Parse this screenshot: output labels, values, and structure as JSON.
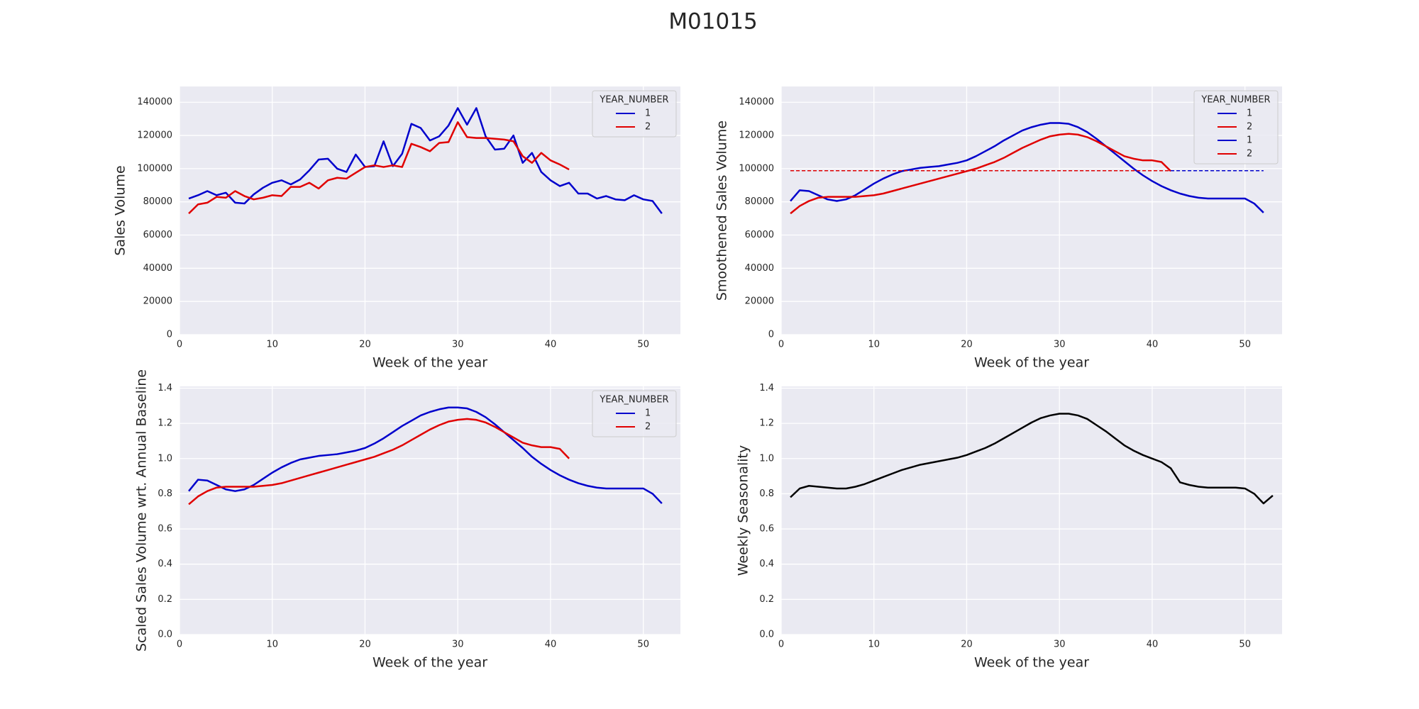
{
  "title": "M01015",
  "chart_data": [
    {
      "type": "line",
      "xlabel": "Week of the year",
      "ylabel": "Sales Volume",
      "xlim": [
        0,
        54
      ],
      "ylim": [
        0,
        149500
      ],
      "xticks": [
        0,
        10,
        20,
        30,
        40,
        50
      ],
      "yticks": [
        0,
        20000,
        40000,
        60000,
        80000,
        100000,
        120000,
        140000
      ],
      "grid": true,
      "legend": "upper right",
      "legend_title": "YEAR_NUMBER",
      "series": [
        {
          "name": "1",
          "color": "#0000cc",
          "linestyle": "solid",
          "x": [
            1,
            2,
            3,
            4,
            5,
            6,
            7,
            8,
            9,
            10,
            11,
            12,
            13,
            14,
            15,
            16,
            17,
            18,
            19,
            20,
            21,
            22,
            23,
            24,
            25,
            26,
            27,
            28,
            29,
            30,
            31,
            32,
            33,
            34,
            35,
            36,
            37,
            38,
            39,
            40,
            41,
            42,
            43,
            44,
            45,
            46,
            47,
            48,
            49,
            50,
            51,
            52
          ],
          "values": [
            82000,
            84000,
            86500,
            84000,
            85500,
            79500,
            79000,
            84500,
            88500,
            91500,
            93000,
            90500,
            93500,
            99000,
            105500,
            106000,
            100000,
            98000,
            108500,
            101000,
            101500,
            116500,
            101500,
            109000,
            127000,
            124500,
            117000,
            119500,
            126000,
            136500,
            126500,
            136500,
            119500,
            111500,
            112000,
            120000,
            103500,
            109500,
            98000,
            93000,
            89500,
            91500,
            85000,
            85000,
            82000,
            83500,
            81500,
            81000,
            84000,
            81500,
            80500,
            73000
          ]
        },
        {
          "name": "2",
          "color": "#e00000",
          "linestyle": "solid",
          "x": [
            1,
            2,
            3,
            4,
            5,
            6,
            7,
            8,
            9,
            10,
            11,
            12,
            13,
            14,
            15,
            16,
            17,
            18,
            19,
            20,
            21,
            22,
            23,
            24,
            25,
            26,
            27,
            28,
            29,
            30,
            31,
            32,
            33,
            34,
            35,
            36,
            37,
            38,
            39,
            40,
            41,
            42
          ],
          "values": [
            73000,
            78500,
            79500,
            83000,
            82500,
            86500,
            83500,
            81500,
            82500,
            84000,
            83500,
            89000,
            89000,
            91500,
            88000,
            93000,
            94500,
            94000,
            97500,
            101000,
            102000,
            101000,
            102000,
            101000,
            115000,
            113000,
            110500,
            115500,
            116000,
            128000,
            119000,
            118500,
            118500,
            118000,
            117500,
            116500,
            107500,
            103500,
            109500,
            105000,
            102500,
            99500
          ]
        }
      ]
    },
    {
      "type": "line",
      "xlabel": "Week of the year",
      "ylabel": "Smoothened Sales Volume",
      "xlim": [
        0,
        54
      ],
      "ylim": [
        0,
        149500
      ],
      "xticks": [
        0,
        10,
        20,
        30,
        40,
        50
      ],
      "yticks": [
        0,
        20000,
        40000,
        60000,
        80000,
        100000,
        120000,
        140000
      ],
      "grid": true,
      "legend": "upper right",
      "legend_title": "YEAR_NUMBER",
      "series": [
        {
          "name": "1",
          "color": "#0000cc",
          "linestyle": "solid",
          "x": [
            1,
            2,
            3,
            4,
            5,
            6,
            7,
            8,
            9,
            10,
            11,
            12,
            13,
            14,
            15,
            16,
            17,
            18,
            19,
            20,
            21,
            22,
            23,
            24,
            25,
            26,
            27,
            28,
            29,
            30,
            31,
            32,
            33,
            34,
            35,
            36,
            37,
            38,
            39,
            40,
            41,
            42,
            43,
            44,
            45,
            46,
            47,
            48,
            49,
            50,
            51,
            52
          ],
          "values": [
            80500,
            87000,
            86500,
            84000,
            81500,
            80500,
            81500,
            84000,
            87500,
            91000,
            94000,
            96500,
            98500,
            99500,
            100500,
            101000,
            101500,
            102500,
            103500,
            105000,
            107500,
            110500,
            113500,
            117000,
            120000,
            123000,
            125000,
            126500,
            127500,
            127500,
            127000,
            125000,
            122000,
            118000,
            113500,
            109000,
            104500,
            100000,
            96000,
            92500,
            89500,
            87000,
            85000,
            83500,
            82500,
            82000,
            82000,
            82000,
            82000,
            82000,
            79000,
            73500
          ]
        },
        {
          "name": "2",
          "color": "#e00000",
          "linestyle": "solid",
          "x": [
            1,
            2,
            3,
            4,
            5,
            6,
            7,
            8,
            9,
            10,
            11,
            12,
            13,
            14,
            15,
            16,
            17,
            18,
            19,
            20,
            21,
            22,
            23,
            24,
            25,
            26,
            27,
            28,
            29,
            30,
            31,
            32,
            33,
            34,
            35,
            36,
            37,
            38,
            39,
            40,
            41,
            42
          ],
          "values": [
            73000,
            77500,
            80500,
            82500,
            83000,
            83000,
            83000,
            83000,
            83500,
            84000,
            85000,
            86500,
            88000,
            89500,
            91000,
            92500,
            94000,
            95500,
            97000,
            98500,
            100000,
            102000,
            104000,
            106500,
            109500,
            112500,
            115000,
            117500,
            119500,
            120500,
            121000,
            120500,
            119000,
            116500,
            113500,
            110500,
            107500,
            106000,
            105000,
            105000,
            104000,
            98500
          ]
        },
        {
          "name": "1",
          "color": "#0000cc",
          "linestyle": "dashed",
          "x": [
            1,
            52
          ],
          "values": [
            98800,
            98800
          ]
        },
        {
          "name": "2",
          "color": "#e00000",
          "linestyle": "dashed",
          "x": [
            1,
            42
          ],
          "values": [
            98800,
            98800
          ]
        }
      ]
    },
    {
      "type": "line",
      "xlabel": "Week of the year",
      "ylabel": "Scaled Sales Volume wrt. Annual Baseline",
      "xlim": [
        0,
        54
      ],
      "ylim": [
        0,
        1.41
      ],
      "xticks": [
        0,
        10,
        20,
        30,
        40,
        50
      ],
      "yticks": [
        {
          "value": 0,
          "label": "0.0"
        },
        0.2,
        0.4,
        0.6,
        0.8,
        {
          "value": 1,
          "label": "1.0"
        },
        1.2,
        1.4
      ],
      "grid": true,
      "legend": "upper right",
      "legend_title": "YEAR_NUMBER",
      "series": [
        {
          "name": "1",
          "color": "#0000cc",
          "linestyle": "solid",
          "x": [
            1,
            2,
            3,
            4,
            5,
            6,
            7,
            8,
            9,
            10,
            11,
            12,
            13,
            14,
            15,
            16,
            17,
            18,
            19,
            20,
            21,
            22,
            23,
            24,
            25,
            26,
            27,
            28,
            29,
            30,
            31,
            32,
            33,
            34,
            35,
            36,
            37,
            38,
            39,
            40,
            41,
            42,
            43,
            44,
            45,
            46,
            47,
            48,
            49,
            50,
            51,
            52
          ],
          "values": [
            0.815,
            0.88,
            0.875,
            0.85,
            0.825,
            0.815,
            0.825,
            0.85,
            0.885,
            0.92,
            0.95,
            0.975,
            0.995,
            1.005,
            1.015,
            1.02,
            1.025,
            1.035,
            1.045,
            1.06,
            1.085,
            1.115,
            1.15,
            1.185,
            1.215,
            1.245,
            1.265,
            1.28,
            1.29,
            1.29,
            1.285,
            1.265,
            1.235,
            1.195,
            1.15,
            1.105,
            1.06,
            1.01,
            0.97,
            0.935,
            0.905,
            0.88,
            0.86,
            0.845,
            0.835,
            0.83,
            0.83,
            0.83,
            0.83,
            0.83,
            0.8,
            0.745
          ]
        },
        {
          "name": "2",
          "color": "#e00000",
          "linestyle": "solid",
          "x": [
            1,
            2,
            3,
            4,
            5,
            6,
            7,
            8,
            9,
            10,
            11,
            12,
            13,
            14,
            15,
            16,
            17,
            18,
            19,
            20,
            21,
            22,
            23,
            24,
            25,
            26,
            27,
            28,
            29,
            30,
            31,
            32,
            33,
            34,
            35,
            36,
            37,
            38,
            39,
            40,
            41,
            42
          ],
          "values": [
            0.74,
            0.785,
            0.815,
            0.835,
            0.84,
            0.84,
            0.84,
            0.84,
            0.845,
            0.85,
            0.86,
            0.875,
            0.89,
            0.905,
            0.92,
            0.935,
            0.95,
            0.965,
            0.98,
            0.995,
            1.01,
            1.03,
            1.05,
            1.075,
            1.105,
            1.135,
            1.165,
            1.19,
            1.21,
            1.22,
            1.225,
            1.22,
            1.205,
            1.18,
            1.15,
            1.12,
            1.09,
            1.075,
            1.065,
            1.065,
            1.055,
            1.0
          ]
        }
      ]
    },
    {
      "type": "line",
      "xlabel": "Week of the year",
      "ylabel": "Weekly Seasonality",
      "xlim": [
        0,
        54
      ],
      "ylim": [
        0,
        1.41
      ],
      "xticks": [
        0,
        10,
        20,
        30,
        40,
        50
      ],
      "yticks": [
        {
          "value": 0,
          "label": "0.0"
        },
        0.2,
        0.4,
        0.6,
        0.8,
        {
          "value": 1,
          "label": "1.0"
        },
        1.2,
        1.4
      ],
      "grid": true,
      "series": [
        {
          "color": "#000000",
          "linestyle": "solid",
          "x": [
            1,
            2,
            3,
            4,
            5,
            6,
            7,
            8,
            9,
            10,
            11,
            12,
            13,
            14,
            15,
            16,
            17,
            18,
            19,
            20,
            21,
            22,
            23,
            24,
            25,
            26,
            27,
            28,
            29,
            30,
            31,
            32,
            33,
            34,
            35,
            36,
            37,
            38,
            39,
            40,
            41,
            42,
            43,
            44,
            45,
            46,
            47,
            48,
            49,
            50,
            51,
            52,
            53
          ],
          "values": [
            0.78,
            0.83,
            0.845,
            0.84,
            0.835,
            0.83,
            0.83,
            0.84,
            0.855,
            0.875,
            0.895,
            0.915,
            0.935,
            0.95,
            0.965,
            0.975,
            0.985,
            0.995,
            1.005,
            1.02,
            1.04,
            1.06,
            1.085,
            1.115,
            1.145,
            1.175,
            1.205,
            1.23,
            1.245,
            1.255,
            1.255,
            1.245,
            1.225,
            1.19,
            1.155,
            1.115,
            1.075,
            1.045,
            1.02,
            1.0,
            0.98,
            0.945,
            0.865,
            0.85,
            0.84,
            0.835,
            0.835,
            0.835,
            0.835,
            0.83,
            0.8,
            0.745,
            0.79
          ]
        }
      ]
    }
  ]
}
